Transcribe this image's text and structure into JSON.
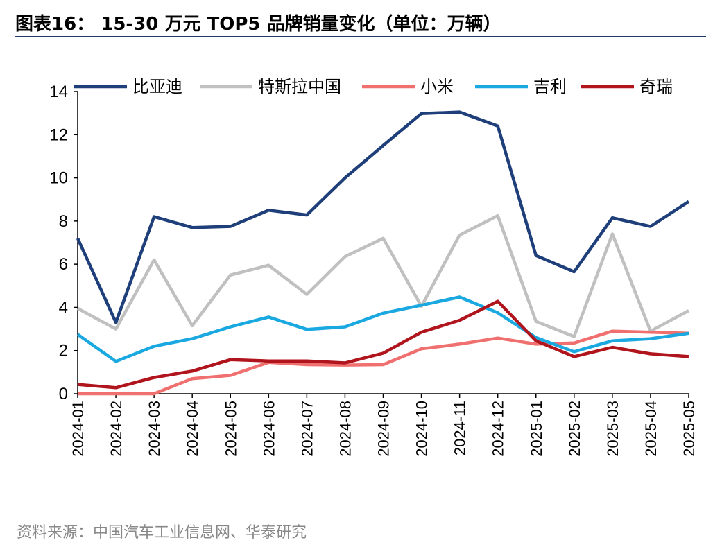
{
  "title": "图表16：  15-30 万元 TOP5 品牌销量变化（单位：万辆）",
  "source": "资料来源：中国汽车工业信息网、华泰研究",
  "chart_data": {
    "type": "line",
    "ylim": [
      0,
      14
    ],
    "yticks": [
      "0",
      "2",
      "4",
      "6",
      "8",
      "10",
      "12",
      "14"
    ],
    "categories": [
      "2024-01",
      "2024-02",
      "2024-03",
      "2024-04",
      "2024-05",
      "2024-06",
      "2024-07",
      "2024-08",
      "2024-09",
      "2024-10",
      "2024-11",
      "2024-12",
      "2025-01",
      "2025-02",
      "2025-03",
      "2025-04",
      "2025-05"
    ],
    "legend_position": "top",
    "series": [
      {
        "name": "比亚迪",
        "color": "#1f3f7a",
        "values": [
          7.2,
          3.3,
          8.2,
          7.7,
          7.75,
          8.5,
          8.28,
          10.0,
          11.5,
          12.98,
          13.05,
          12.4,
          6.4,
          5.65,
          8.15,
          7.75,
          8.9
        ]
      },
      {
        "name": "特斯拉中国",
        "color": "#c0c0c0",
        "values": [
          3.95,
          3.0,
          6.2,
          3.15,
          5.5,
          5.95,
          4.6,
          6.35,
          7.2,
          4.05,
          7.35,
          8.25,
          3.35,
          2.65,
          7.4,
          2.9,
          3.85
        ]
      },
      {
        "name": "小米",
        "color": "#f07070",
        "values": [
          0.0,
          0.0,
          0.0,
          0.7,
          0.85,
          1.45,
          1.35,
          1.33,
          1.35,
          2.08,
          2.3,
          2.58,
          2.3,
          2.35,
          2.9,
          2.85,
          2.8
        ]
      },
      {
        "name": "吉利",
        "color": "#1aa8e0",
        "values": [
          2.75,
          1.5,
          2.2,
          2.55,
          3.1,
          3.55,
          2.98,
          3.1,
          3.73,
          4.1,
          4.48,
          3.75,
          2.6,
          1.95,
          2.45,
          2.55,
          2.8
        ]
      },
      {
        "name": "奇瑞",
        "color": "#b0141c",
        "values": [
          0.43,
          0.28,
          0.75,
          1.05,
          1.58,
          1.52,
          1.52,
          1.43,
          1.88,
          2.85,
          3.4,
          4.28,
          2.45,
          1.72,
          2.15,
          1.85,
          1.72
        ]
      }
    ]
  }
}
